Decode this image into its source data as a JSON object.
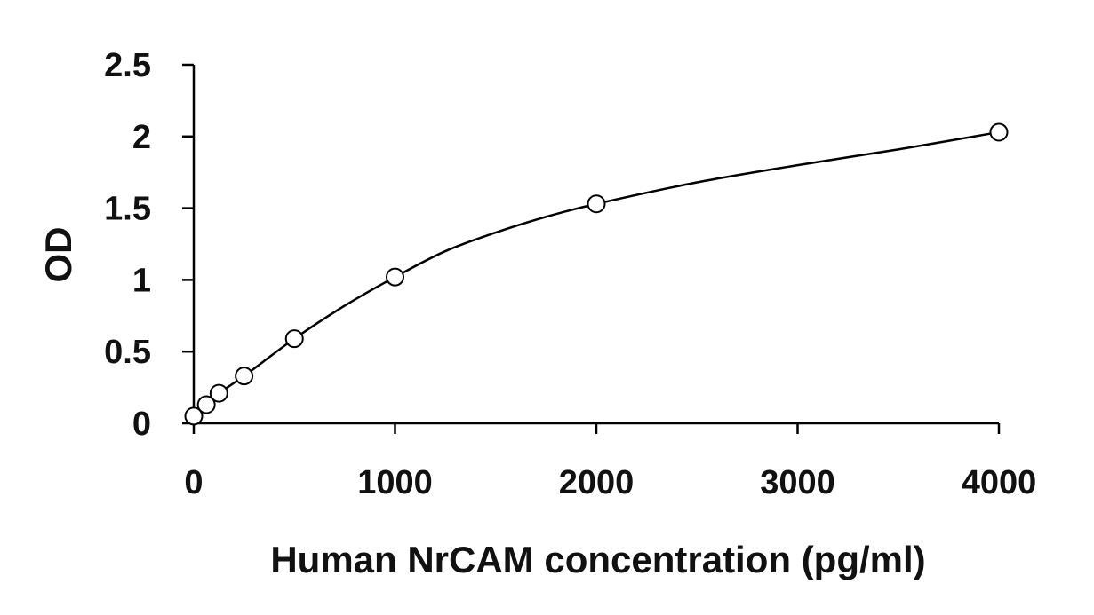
{
  "chart_data": {
    "type": "scatter",
    "title": "",
    "xlabel": "Human NrCAM concentration (pg/ml)",
    "ylabel": "OD",
    "xlim": [
      0,
      4000
    ],
    "ylim": [
      0,
      2.5
    ],
    "x_ticks": [
      "0",
      "1000",
      "2000",
      "3000",
      "4000"
    ],
    "y_ticks": [
      "0",
      "0.5",
      "1",
      "1.5",
      "2",
      "2.5"
    ],
    "grid": false,
    "legend": "none",
    "series": [
      {
        "marker": "open-circle",
        "x": [
          0,
          62.5,
          125,
          250,
          500,
          1000,
          2000,
          4000
        ],
        "y": [
          0.05,
          0.13,
          0.21,
          0.33,
          0.59,
          1.02,
          1.53,
          2.03
        ]
      }
    ],
    "fit_curve": {
      "style": "smooth-line",
      "x": [
        0,
        62.5,
        125,
        250,
        500,
        750,
        1000,
        1250,
        1500,
        1750,
        2000,
        2500,
        3000,
        3500,
        4000
      ],
      "y": [
        0.05,
        0.13,
        0.21,
        0.33,
        0.59,
        0.82,
        1.02,
        1.2,
        1.33,
        1.44,
        1.53,
        1.68,
        1.8,
        1.91,
        2.03
      ]
    },
    "colors": {
      "axis": "#000000",
      "marker": "#000000",
      "curve": "#000000"
    }
  }
}
